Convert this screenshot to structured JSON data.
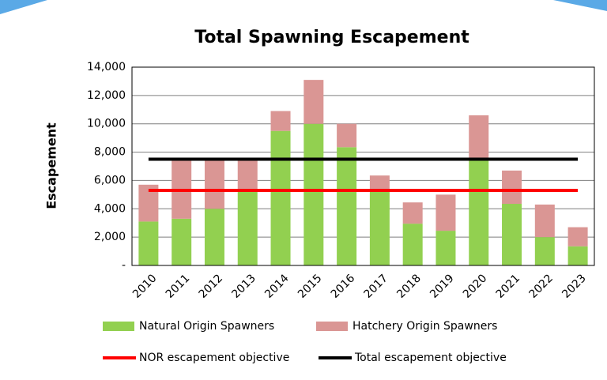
{
  "chart_data": {
    "type": "bar",
    "stacked": true,
    "title": "Total Spawning Escapement",
    "y_label": "Escapement",
    "categories": [
      "2010",
      "2011",
      "2012",
      "2013",
      "2014",
      "2015",
      "2016",
      "2017",
      "2018",
      "2019",
      "2020",
      "2021",
      "2022",
      "2023"
    ],
    "series": [
      {
        "name": "Natural Origin Spawners",
        "type": "bar",
        "color": "#92d050",
        "values": [
          3100,
          3300,
          4000,
          5200,
          9500,
          10000,
          8350,
          5300,
          2950,
          2450,
          7450,
          4350,
          2000,
          1350
        ]
      },
      {
        "name": "Hatchery Origin Spawners",
        "type": "bar",
        "color": "#da9694",
        "values": [
          2600,
          4100,
          3400,
          2200,
          1400,
          3100,
          1650,
          1050,
          1500,
          2550,
          3150,
          2350,
          2300,
          1350
        ]
      },
      {
        "name": "NOR escapement objective",
        "type": "line",
        "color": "#ff0000",
        "values": [
          5300,
          5300,
          5300,
          5300,
          5300,
          5300,
          5300,
          5300,
          5300,
          5300,
          5300,
          5300,
          5300,
          5300
        ]
      },
      {
        "name": "Total escapement objective",
        "type": "line",
        "color": "#000000",
        "values": [
          7500,
          7500,
          7500,
          7500,
          7500,
          7500,
          7500,
          7500,
          7500,
          7500,
          7500,
          7500,
          7500,
          7500
        ]
      }
    ],
    "ylim": [
      0,
      14000
    ],
    "yticks": [
      {
        "value": 0,
        "label": "-"
      },
      {
        "value": 2000,
        "label": "2,000"
      },
      {
        "value": 4000,
        "label": "4,000"
      },
      {
        "value": 6000,
        "label": "6,000"
      },
      {
        "value": 8000,
        "label": "8,000"
      },
      {
        "value": 10000,
        "label": "10,000"
      },
      {
        "value": 12000,
        "label": "12,000"
      },
      {
        "value": 14000,
        "label": "14,000"
      }
    ],
    "grid": true
  }
}
